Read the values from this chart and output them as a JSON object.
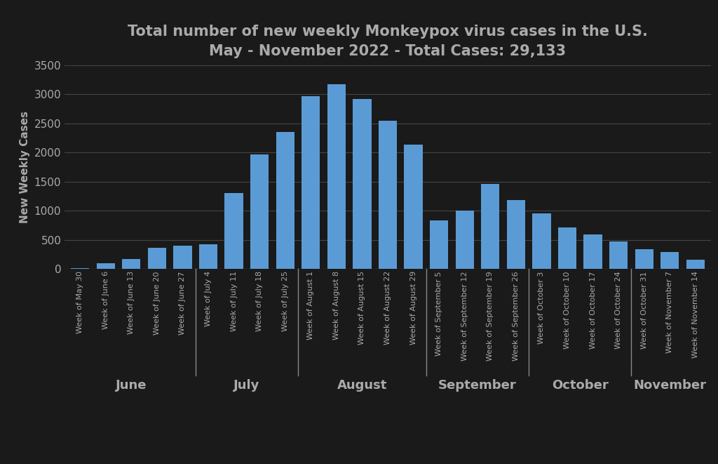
{
  "title_line1": "Total number of new weekly Monkeypox virus cases in the U.S.",
  "title_line2": "May - November 2022 - Total Cases: 29,133",
  "ylabel": "New Weekly Cases",
  "bar_color": "#5b9bd5",
  "background_color": "#1a1a1a",
  "text_color": "#aaaaaa",
  "grid_color": "#444444",
  "divider_color": "#888888",
  "ylim": [
    0,
    3500
  ],
  "yticks": [
    0,
    500,
    1000,
    1500,
    2000,
    2500,
    3000,
    3500
  ],
  "weeks": [
    "Week of May 30",
    "Week of June 6",
    "Week of June 13",
    "Week of June 20",
    "Week of June 27",
    "Week of July 4",
    "Week of July 11",
    "Week of July 18",
    "Week of July 25",
    "Week of August 1",
    "Week of August 8",
    "Week of August 15",
    "Week of August 22",
    "Week of August 29",
    "Week of September 5",
    "Week of September 12",
    "Week of September 19",
    "Week of September 26",
    "Week of October 3",
    "Week of October 10",
    "Week of October 17",
    "Week of October 24",
    "Week of October 31",
    "Week of November 7",
    "Week of November 14"
  ],
  "values": [
    20,
    100,
    175,
    360,
    400,
    430,
    1310,
    1970,
    2350,
    2960,
    3170,
    2920,
    2540,
    2140,
    840,
    1000,
    1460,
    1180,
    960,
    720,
    590,
    470,
    340,
    290,
    155
  ],
  "month_ranges": {
    "June": [
      0,
      4
    ],
    "July": [
      5,
      8
    ],
    "August": [
      9,
      13
    ],
    "September": [
      14,
      17
    ],
    "October": [
      18,
      21
    ],
    "November": [
      22,
      24
    ]
  },
  "month_label_fontsize": 13,
  "tick_label_fontsize": 8,
  "ylabel_fontsize": 11,
  "title_fontsize": 15
}
